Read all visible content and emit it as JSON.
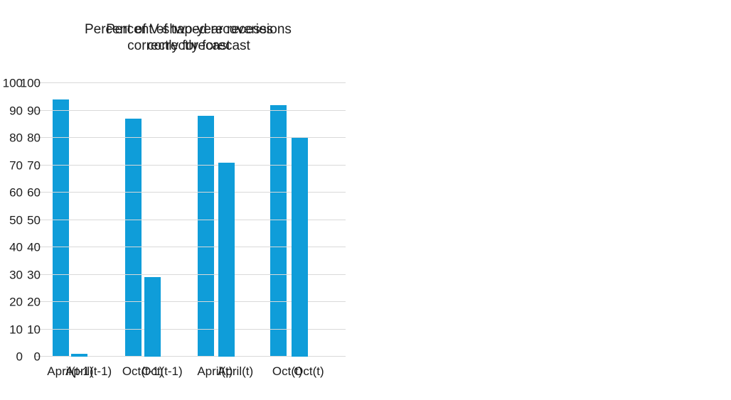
{
  "colors": {
    "bar": "#0f9dd9",
    "gridline": "#d9d9d9",
    "text": "#1c1c1c",
    "background": "#ffffff"
  },
  "chart_data": [
    {
      "type": "bar",
      "title": "Percent of V-shaped recoveries correctly forecast",
      "title_lines": [
        "Percent of V-shaped recoveries",
        "correctly forecast"
      ],
      "categories": [
        "April(t-1)",
        "Oct(t-1)",
        "April(t)",
        "Oct(t)"
      ],
      "values": [
        94,
        87,
        88,
        92
      ],
      "xlabel": "",
      "ylabel": "",
      "ylim": [
        0,
        100
      ],
      "yticks": [
        0,
        10,
        20,
        30,
        40,
        50,
        60,
        70,
        80,
        90,
        100
      ],
      "grid": true,
      "legend": false
    },
    {
      "type": "bar",
      "title": "Percent of two-year recessions correctly forecast",
      "title_lines": [
        "Percent of two-year recessions",
        "correctly forecast"
      ],
      "categories": [
        "April(t-1)",
        "Oct(t-1)",
        "April(t)",
        "Oct(t)"
      ],
      "values": [
        1,
        29,
        71,
        80
      ],
      "xlabel": "",
      "ylabel": "",
      "ylim": [
        0,
        100
      ],
      "yticks": [
        0,
        10,
        20,
        30,
        40,
        50,
        60,
        70,
        80,
        90,
        100
      ],
      "grid": true,
      "legend": false
    }
  ]
}
